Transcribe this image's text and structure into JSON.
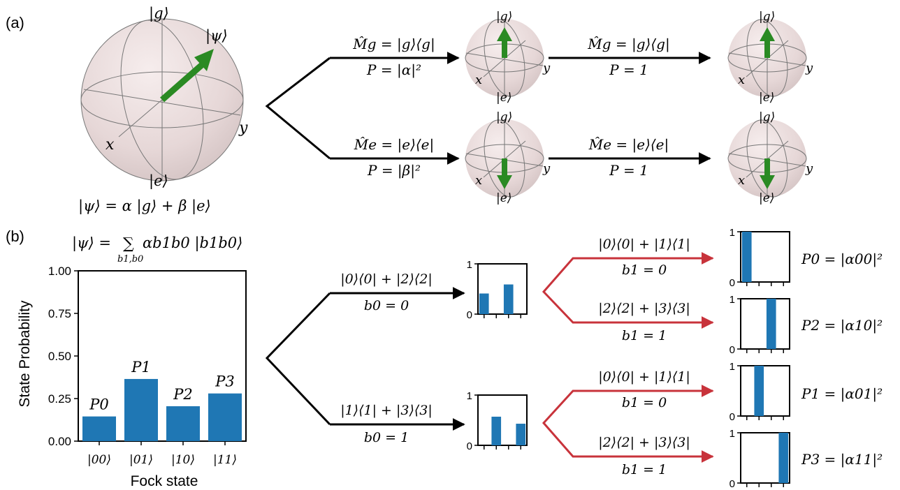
{
  "panels": {
    "a": {
      "label": "(a)",
      "big_sphere": {
        "top": "|g⟩",
        "bottom": "|e⟩",
        "x": "x",
        "y": "y",
        "psi": "|ψ⟩"
      },
      "state_eq": "|ψ⟩ = α |g⟩ + β |e⟩",
      "arrows": [
        {
          "op": "M̂g = |g⟩⟨g|",
          "prob": "P = |α|²"
        },
        {
          "op": "M̂e = |e⟩⟨e|",
          "prob": "P = |β|²"
        },
        {
          "op": "M̂g = |g⟩⟨g|",
          "prob": "P = 1"
        },
        {
          "op": "M̂e = |e⟩⟨e|",
          "prob": "P = 1"
        }
      ],
      "small_sphere": {
        "top": "|g⟩",
        "bottom": "|e⟩",
        "x": "x",
        "y": "y"
      }
    },
    "b": {
      "label": "(b)",
      "state_eq_lhs": "|ψ⟩ = ",
      "state_eq_sum": "∑",
      "state_eq_sub": "b1,b0",
      "state_eq_rhs": "αb1b0 |b1b0⟩",
      "first_arrows": [
        {
          "op": "|0⟩⟨0| + |2⟩⟨2|",
          "cond": "b0 = 0"
        },
        {
          "op": "|1⟩⟨1| + |3⟩⟨3|",
          "cond": "b0 = 1"
        }
      ],
      "red_arrows": [
        {
          "op": "|0⟩⟨0| + |1⟩⟨1|",
          "cond": "b1 = 0"
        },
        {
          "op": "|2⟩⟨2| + |3⟩⟨3|",
          "cond": "b1 = 1"
        },
        {
          "op": "|0⟩⟨0| + |1⟩⟨1|",
          "cond": "b1 = 0"
        },
        {
          "op": "|2⟩⟨2| + |3⟩⟨3|",
          "cond": "b1 = 1"
        }
      ],
      "outcome_labels": [
        "P0 = |α00|²",
        "P2 = |α10|²",
        "P1 = |α01|²",
        "P3 = |α11|²"
      ],
      "mini_hist_ticks": [
        "0",
        "1"
      ]
    }
  },
  "chart_data": [
    {
      "type": "bar",
      "categories": [
        "|00⟩",
        "|01⟩",
        "|10⟩",
        "|11⟩"
      ],
      "values": [
        0.145,
        0.365,
        0.205,
        0.28
      ],
      "bar_labels": [
        "P0",
        "P1",
        "P2",
        "P3"
      ],
      "xlabel": "Fock state",
      "ylabel": "State Probability",
      "ylim": [
        0,
        1
      ],
      "yticks": [
        "0.00",
        "0.25",
        "0.50",
        "0.75",
        "1.00"
      ],
      "color": "#1f77b4"
    },
    {
      "type": "bar",
      "categories": [
        "|00⟩",
        "|01⟩",
        "|10⟩",
        "|11⟩"
      ],
      "values": [
        0.41,
        0,
        0.59,
        0
      ],
      "ylim": [
        0,
        1
      ]
    },
    {
      "type": "bar",
      "categories": [
        "|00⟩",
        "|01⟩",
        "|10⟩",
        "|11⟩"
      ],
      "values": [
        0,
        0.57,
        0,
        0.43
      ],
      "ylim": [
        0,
        1
      ]
    },
    {
      "type": "bar",
      "categories": [
        "|00⟩",
        "|01⟩",
        "|10⟩",
        "|11⟩"
      ],
      "values": [
        1,
        0,
        0,
        0
      ],
      "ylim": [
        0,
        1
      ]
    },
    {
      "type": "bar",
      "categories": [
        "|00⟩",
        "|01⟩",
        "|10⟩",
        "|11⟩"
      ],
      "values": [
        0,
        0,
        1,
        0
      ],
      "ylim": [
        0,
        1
      ]
    },
    {
      "type": "bar",
      "categories": [
        "|00⟩",
        "|01⟩",
        "|10⟩",
        "|11⟩"
      ],
      "values": [
        0,
        1,
        0,
        0
      ],
      "ylim": [
        0,
        1
      ]
    },
    {
      "type": "bar",
      "categories": [
        "|00⟩",
        "|01⟩",
        "|10⟩",
        "|11⟩"
      ],
      "values": [
        0,
        0,
        0,
        1
      ],
      "ylim": [
        0,
        1
      ]
    }
  ],
  "colors": {
    "bar": "#1f77b4",
    "vector": "#2a8a23",
    "red_arrow": "#c8333b",
    "sphere": "#ecdcdc"
  }
}
